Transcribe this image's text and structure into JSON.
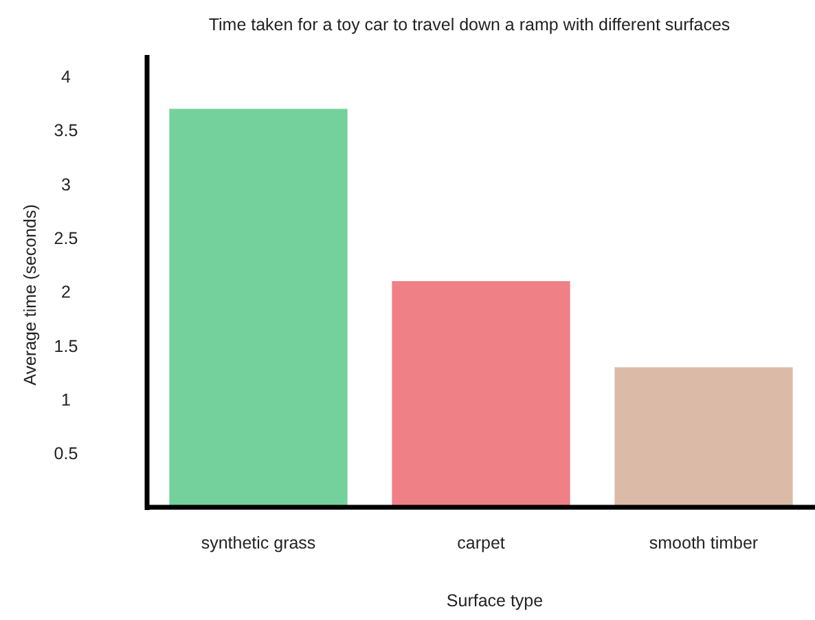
{
  "chart_data": {
    "type": "bar",
    "title": "Time taken for a toy car to travel down a ramp with different surfaces",
    "xlabel": "Surface type",
    "ylabel": "Average time (seconds)",
    "categories": [
      "synthetic grass",
      "carpet",
      "smooth timber"
    ],
    "values": [
      3.7,
      2.1,
      1.3
    ],
    "colors": [
      "#74d19c",
      "#ef8086",
      "#dbbba8"
    ],
    "ylim": [
      0,
      4.2
    ],
    "yticks": [
      0.5,
      1,
      1.5,
      2,
      2.5,
      3,
      3.5,
      4
    ],
    "grid": false
  }
}
